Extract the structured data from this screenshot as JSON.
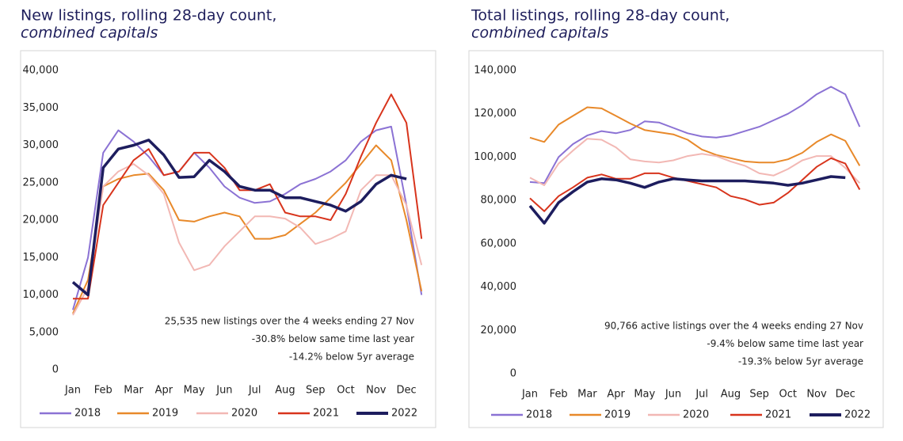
{
  "chart_data": [
    {
      "type": "line",
      "title": "New listings, rolling 28-day count,",
      "subtitle": "combined capitals",
      "categories": [
        "Jan",
        null,
        "Feb",
        null,
        "Mar",
        null,
        "Apr",
        null,
        "May",
        null,
        "Jun",
        null,
        "Jul",
        null,
        "Aug",
        null,
        "Sep",
        null,
        "Oct",
        null,
        "Nov",
        null,
        "Dec",
        null
      ],
      "ylim": [
        0,
        40000
      ],
      "yticks": [
        0,
        {
          "value": 5000,
          "label": "5,000"
        },
        {
          "value": 10000,
          "label": "10,000"
        },
        {
          "value": 15000,
          "label": "15,000"
        },
        {
          "value": 20000,
          "label": "20,000"
        },
        {
          "value": 25000,
          "label": "25,000"
        },
        {
          "value": 30000,
          "label": "30,000"
        },
        {
          "value": 35000,
          "label": "35,000"
        },
        {
          "value": 40000,
          "label": "40,000"
        }
      ],
      "annotations": [
        "25,535 new listings over the 4 weeks ending 27 Nov",
        "-30.8% below same time last year",
        "-14.2% below 5yr average"
      ],
      "series": [
        {
          "name": "2018",
          "color": "#8b72d4",
          "values": [
            8000,
            15000,
            29000,
            32000,
            30500,
            28500,
            26000,
            26500,
            29000,
            27000,
            24500,
            23000,
            22300,
            22500,
            23500,
            24800,
            25500,
            26500,
            28000,
            30500,
            32000,
            32500,
            22000,
            10000
          ]
        },
        {
          "name": "2019",
          "color": "#e8892a",
          "values": [
            7500,
            12000,
            24500,
            25500,
            26000,
            26200,
            24000,
            20000,
            19800,
            20500,
            21000,
            20500,
            17500,
            17500,
            18000,
            19500,
            21000,
            23000,
            25000,
            27500,
            30000,
            28000,
            20000,
            10500
          ]
        },
        {
          "name": "2020",
          "color": "#f2b8b4",
          "values": [
            7300,
            11000,
            24500,
            26500,
            27500,
            26000,
            23500,
            17000,
            13300,
            14000,
            16500,
            18500,
            20500,
            20500,
            20200,
            19000,
            16800,
            17500,
            18500,
            24000,
            26000,
            26000,
            22000,
            14000
          ]
        },
        {
          "name": "2021",
          "color": "#d8341c",
          "values": [
            9500,
            9500,
            22000,
            25000,
            28000,
            29500,
            26000,
            26500,
            29000,
            29000,
            27000,
            24000,
            24000,
            24800,
            21000,
            20500,
            20500,
            20000,
            23500,
            28500,
            33000,
            36800,
            33000,
            17500
          ]
        },
        {
          "name": "2022",
          "color": "#1d1d5e",
          "values": [
            11700,
            10000,
            27000,
            29500,
            30000,
            30700,
            28700,
            25700,
            25800,
            28000,
            26500,
            24500,
            24000,
            24000,
            23000,
            23000,
            22500,
            22000,
            21200,
            22500,
            24800,
            26000,
            25500,
            null
          ]
        }
      ]
    },
    {
      "type": "line",
      "title": "Total listings, rolling 28-day count,",
      "subtitle": "combined capitals",
      "categories": [
        "Jan",
        null,
        "Feb",
        null,
        "Mar",
        null,
        "Apr",
        null,
        "May",
        null,
        "Jun",
        null,
        "Jul",
        null,
        "Aug",
        null,
        "Sep",
        null,
        "Oct",
        null,
        "Nov",
        null,
        "Dec",
        null
      ],
      "ylim": [
        0,
        140000
      ],
      "yticks": [
        0,
        {
          "value": 20000,
          "label": "20,000"
        },
        {
          "value": 40000,
          "label": "40,000"
        },
        {
          "value": 60000,
          "label": "60,000"
        },
        {
          "value": 80000,
          "label": "80,000"
        },
        {
          "value": 100000,
          "label": "100,000"
        },
        {
          "value": 120000,
          "label": "120,000"
        },
        {
          "value": 140000,
          "label": "140,000"
        }
      ],
      "annotations": [
        "90,766 active listings over the 4 weeks ending 27 Nov",
        "-9.4% below same time last year",
        "-19.3% below 5yr average"
      ],
      "series": [
        {
          "name": "2018",
          "color": "#8b72d4",
          "values": [
            88500,
            88000,
            100000,
            106000,
            110000,
            112000,
            111000,
            112500,
            116500,
            116000,
            113500,
            111000,
            109500,
            109000,
            110000,
            112000,
            114000,
            117000,
            120000,
            124000,
            129000,
            132500,
            129000,
            114000
          ]
        },
        {
          "name": "2019",
          "color": "#e8892a",
          "values": [
            109000,
            107000,
            115000,
            119000,
            123000,
            122500,
            119000,
            115500,
            112500,
            111500,
            110500,
            108000,
            103500,
            101000,
            99500,
            98000,
            97500,
            97500,
            99000,
            102000,
            107000,
            110500,
            107500,
            96000
          ]
        },
        {
          "name": "2020",
          "color": "#f2b8b4",
          "values": [
            90500,
            87000,
            97000,
            103000,
            108500,
            108000,
            104500,
            99000,
            98000,
            97500,
            98500,
            100500,
            101500,
            100500,
            98000,
            96000,
            92500,
            91500,
            94500,
            98500,
            100500,
            100500,
            95000,
            88000
          ]
        },
        {
          "name": "2021",
          "color": "#d8341c",
          "values": [
            81000,
            75000,
            82000,
            86000,
            90500,
            92000,
            90000,
            90000,
            92500,
            92500,
            90500,
            89000,
            87500,
            86000,
            82000,
            80500,
            78000,
            79000,
            83500,
            89500,
            95500,
            99500,
            97000,
            85000
          ]
        },
        {
          "name": "2022",
          "color": "#1d1d5e",
          "values": [
            77500,
            69500,
            79000,
            84000,
            88500,
            90000,
            89500,
            88000,
            86000,
            88500,
            90000,
            89500,
            89000,
            89000,
            89000,
            89000,
            88500,
            88000,
            87000,
            88000,
            89500,
            91000,
            90500,
            null
          ]
        }
      ]
    }
  ]
}
